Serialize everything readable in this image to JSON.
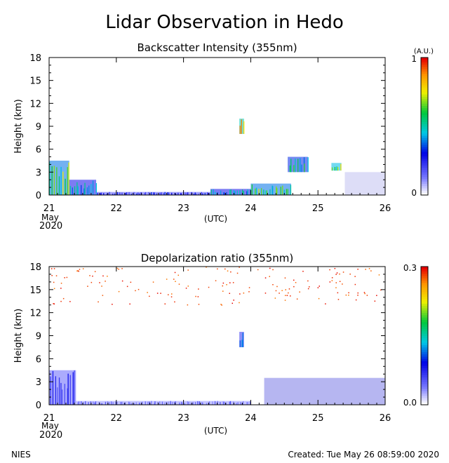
{
  "main_title": "Lidar Observation in Hedo",
  "footer": {
    "org": "NIES",
    "created": "Created: Tue May 26 08:59:00 2020"
  },
  "chart_data": [
    {
      "type": "heatmap",
      "title": "Backscatter Intensity (355nm)",
      "ylabel": "Height (km)",
      "xlabel": "(UTC)",
      "xlim": [
        21,
        26
      ],
      "ylim": [
        0,
        18
      ],
      "x_ticks": [
        "21",
        "22",
        "23",
        "24",
        "25",
        "26"
      ],
      "x_start_sub": [
        "May",
        "2020"
      ],
      "y_ticks": [
        "0",
        "3",
        "6",
        "9",
        "12",
        "15",
        "18"
      ],
      "colorbar": {
        "unit": "(A.U.)",
        "min_label": "0",
        "max_label": "1",
        "range": [
          0,
          1
        ]
      },
      "grid": false,
      "features": [
        {
          "kind": "boundary_layer",
          "x": [
            21.0,
            21.3
          ],
          "height": [
            0,
            4.5
          ],
          "intensity": 0.7
        },
        {
          "kind": "low_cloud_band",
          "x": [
            21.3,
            21.7
          ],
          "height": [
            0,
            2
          ],
          "intensity": 0.5
        },
        {
          "kind": "surface_layer",
          "x": [
            21.7,
            23.4
          ],
          "height": [
            0,
            0.4
          ],
          "intensity": 0.3
        },
        {
          "kind": "surface_layer",
          "x": [
            23.4,
            24.0
          ],
          "height": [
            0,
            0.8
          ],
          "intensity": 0.5
        },
        {
          "kind": "isolated_cloud",
          "x": [
            23.83,
            23.9
          ],
          "height": [
            8,
            10
          ],
          "intensity": 0.9
        },
        {
          "kind": "surface_layer",
          "x": [
            24.0,
            24.6
          ],
          "height": [
            0,
            1.5
          ],
          "intensity": 0.7
        },
        {
          "kind": "mid_cloud",
          "x": [
            24.55,
            24.85
          ],
          "height": [
            3,
            5
          ],
          "intensity": 0.6
        },
        {
          "kind": "mid_cloud",
          "x": [
            25.2,
            25.35
          ],
          "height": [
            3.2,
            4.2
          ],
          "intensity": 0.8
        },
        {
          "kind": "aerosol_layer",
          "x": [
            25.4,
            26.0
          ],
          "height": [
            0,
            3
          ],
          "intensity": 0.2
        }
      ]
    },
    {
      "type": "heatmap",
      "title": "Depolarization ratio (355nm)",
      "ylabel": "Height (km)",
      "xlabel": "(UTC)",
      "xlim": [
        21,
        26
      ],
      "ylim": [
        0,
        18
      ],
      "x_ticks": [
        "21",
        "22",
        "23",
        "24",
        "25",
        "26"
      ],
      "x_start_sub": [
        "May",
        "2020"
      ],
      "y_ticks": [
        "0",
        "3",
        "6",
        "9",
        "12",
        "15",
        "18"
      ],
      "colorbar": {
        "unit": "",
        "min_label": "0.0",
        "max_label": "0.3",
        "range": [
          0,
          0.3
        ]
      },
      "grid": false,
      "features": [
        {
          "kind": "boundary_layer",
          "x": [
            21.0,
            21.4
          ],
          "height": [
            0,
            4.5
          ],
          "value": 0.08
        },
        {
          "kind": "surface_layer",
          "x": [
            21.4,
            24.0
          ],
          "height": [
            0,
            0.5
          ],
          "value": 0.05
        },
        {
          "kind": "isolated_cloud",
          "x": [
            23.83,
            23.9
          ],
          "height": [
            7.5,
            9.5
          ],
          "value": 0.12
        },
        {
          "kind": "dust_layer",
          "x": [
            24.2,
            26.0
          ],
          "height": [
            0,
            3.5
          ],
          "value": 0.04
        },
        {
          "kind": "upper_noise",
          "x": [
            21.0,
            26.0
          ],
          "height": [
            13,
            18
          ],
          "value": 0.3
        }
      ]
    }
  ]
}
